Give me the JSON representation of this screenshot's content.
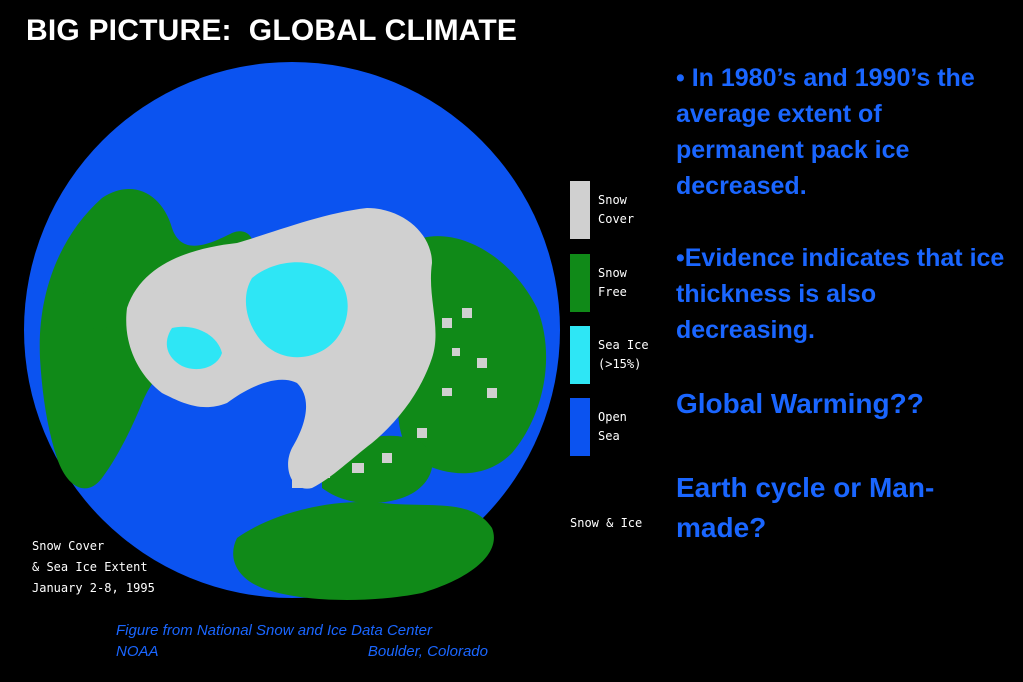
{
  "title": "BIG PICTURE:  GLOBAL CLIMATE",
  "colors": {
    "snow_cover": "#d0d0d0",
    "snow_free": "#108a18",
    "sea_ice": "#2ee6f5",
    "open_sea": "#0b53f0",
    "text_blue": "#1a66ff"
  },
  "legend": {
    "items": [
      {
        "line1": "Snow",
        "line2": "Cover",
        "color": "#d0d0d0"
      },
      {
        "line1": "Snow",
        "line2": "Free",
        "color": "#108a18"
      },
      {
        "line1": "Sea Ice",
        "line2": "(>15%)",
        "color": "#2ee6f5"
      },
      {
        "line1": "Open",
        "line2": "Sea",
        "color": "#0b53f0"
      }
    ],
    "footer": "Snow & Ice"
  },
  "map_caption": {
    "line1": "Snow Cover",
    "line2": "& Sea Ice Extent",
    "line3": "January 2-8, 1995"
  },
  "bullets": {
    "b1": "• In 1980’s and 1990’s the average extent of permanent pack ice decreased.",
    "b2": "•Evidence indicates that ice thickness is also decreasing.",
    "q1": "Global Warming??",
    "q2": "Earth cycle or Man-made?"
  },
  "credit": {
    "line1": "Figure from National Snow and Ice Data Center",
    "left2": "NOAA",
    "right2": "Boulder, Colorado"
  }
}
